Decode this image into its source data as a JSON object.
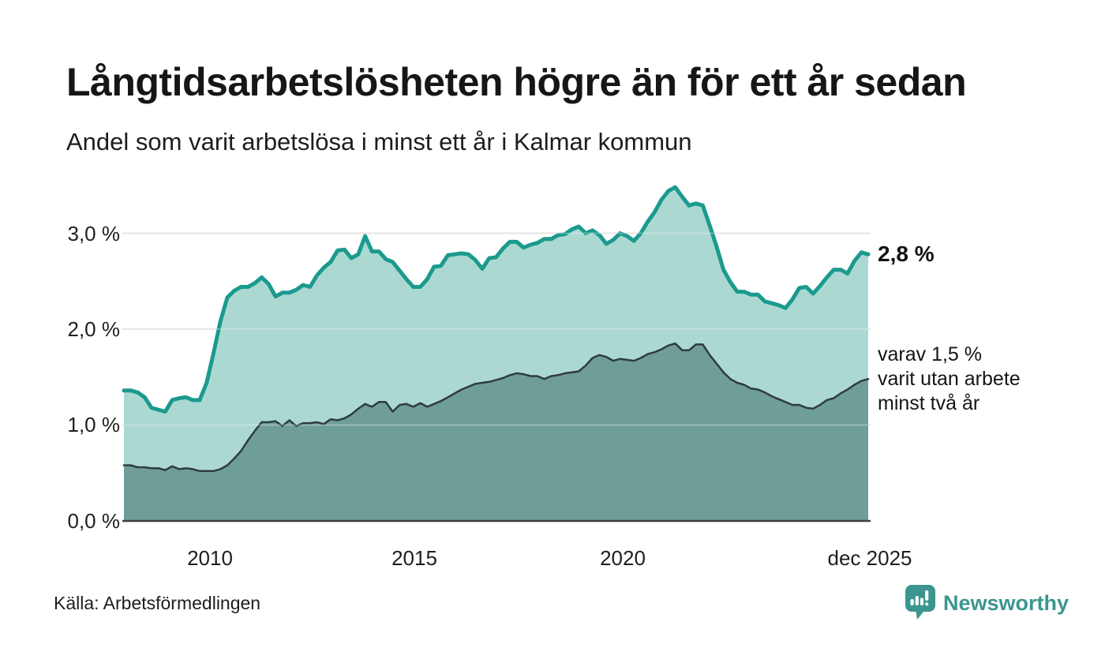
{
  "page": {
    "background": "#ffffff"
  },
  "chart_data": {
    "type": "area",
    "title": "Långtidsarbetslösheten högre än för ett år sedan",
    "subtitle": "Andel som varit arbetslösa i minst ett år i Kalmar kommun",
    "source": "Källa: Arbetsförmedlingen",
    "grid": "horizontal",
    "legend": "none, direct labels at right edge of plot",
    "x_axis": {
      "tick_labels": [
        "2010",
        "2015",
        "2020",
        "dec 2025"
      ],
      "range_estimate": [
        "2008-01",
        "2025-12"
      ],
      "sampling": "monthly data, values below sampled at ~2-month steps"
    },
    "y_axis": {
      "tick_labels": [
        "3,0 %",
        "2,0 %",
        "1,0 %",
        "0,0 %"
      ],
      "tick_values": [
        3.0,
        2.0,
        1.0,
        0.0
      ],
      "unit": "%",
      "range": [
        0,
        3.6
      ]
    },
    "series": [
      {
        "name": "Andel som varit arbetslösa i minst ett år",
        "line_color": "#1b9a8e",
        "fill_color": "#abd9d2",
        "end_value": 2.8,
        "end_label": "2,8 %",
        "values": [
          1.36,
          1.36,
          1.34,
          1.29,
          1.18,
          1.16,
          1.14,
          1.26,
          1.28,
          1.29,
          1.26,
          1.26,
          1.44,
          1.75,
          2.08,
          2.33,
          2.4,
          2.44,
          2.44,
          2.48,
          2.54,
          2.47,
          2.34,
          2.38,
          2.38,
          2.41,
          2.46,
          2.44,
          2.56,
          2.64,
          2.7,
          2.82,
          2.83,
          2.74,
          2.78,
          2.97,
          2.81,
          2.81,
          2.73,
          2.7,
          2.61,
          2.52,
          2.44,
          2.44,
          2.52,
          2.65,
          2.66,
          2.77,
          2.78,
          2.79,
          2.78,
          2.72,
          2.63,
          2.74,
          2.75,
          2.84,
          2.91,
          2.91,
          2.85,
          2.88,
          2.9,
          2.94,
          2.94,
          2.98,
          2.99,
          3.04,
          3.07,
          3.0,
          3.03,
          2.98,
          2.89,
          2.93,
          3.0,
          2.97,
          2.92,
          3.0,
          3.12,
          3.22,
          3.35,
          3.44,
          3.48,
          3.38,
          3.29,
          3.31,
          3.29,
          3.08,
          2.86,
          2.62,
          2.49,
          2.39,
          2.39,
          2.36,
          2.36,
          2.29,
          2.27,
          2.25,
          2.22,
          2.31,
          2.43,
          2.44,
          2.37,
          2.45,
          2.54,
          2.62,
          2.62,
          2.58,
          2.71,
          2.8,
          2.78
        ]
      },
      {
        "name": "varav utan arbete minst två år",
        "line_color": "#2e3d3b",
        "fill_color": "#6f9e99",
        "end_value": 1.5,
        "end_label": "varav 1,5 %\nvarit utan arbete\nminst två år",
        "values": [
          0.58,
          0.58,
          0.56,
          0.56,
          0.55,
          0.55,
          0.53,
          0.57,
          0.54,
          0.55,
          0.54,
          0.52,
          0.52,
          0.52,
          0.54,
          0.58,
          0.65,
          0.73,
          0.84,
          0.94,
          1.03,
          1.03,
          1.04,
          0.99,
          1.05,
          0.99,
          1.02,
          1.02,
          1.03,
          1.01,
          1.06,
          1.05,
          1.07,
          1.11,
          1.17,
          1.22,
          1.19,
          1.24,
          1.24,
          1.14,
          1.21,
          1.22,
          1.19,
          1.23,
          1.19,
          1.22,
          1.25,
          1.29,
          1.33,
          1.37,
          1.4,
          1.43,
          1.44,
          1.45,
          1.47,
          1.49,
          1.52,
          1.54,
          1.53,
          1.51,
          1.51,
          1.48,
          1.51,
          1.52,
          1.54,
          1.55,
          1.56,
          1.62,
          1.7,
          1.73,
          1.71,
          1.67,
          1.69,
          1.68,
          1.67,
          1.7,
          1.74,
          1.76,
          1.79,
          1.83,
          1.85,
          1.78,
          1.78,
          1.84,
          1.84,
          1.73,
          1.64,
          1.55,
          1.48,
          1.44,
          1.42,
          1.38,
          1.37,
          1.34,
          1.3,
          1.27,
          1.24,
          1.21,
          1.21,
          1.18,
          1.17,
          1.21,
          1.26,
          1.28,
          1.33,
          1.37,
          1.42,
          1.46,
          1.48
        ]
      }
    ],
    "gridline_color": "#dcdcdc",
    "baseline_color": "#3f3f3f"
  },
  "branding": {
    "name": "Newsworthy",
    "color": "#3a968e",
    "icon": "newsworthy-speech-bubble-bar-chart"
  }
}
